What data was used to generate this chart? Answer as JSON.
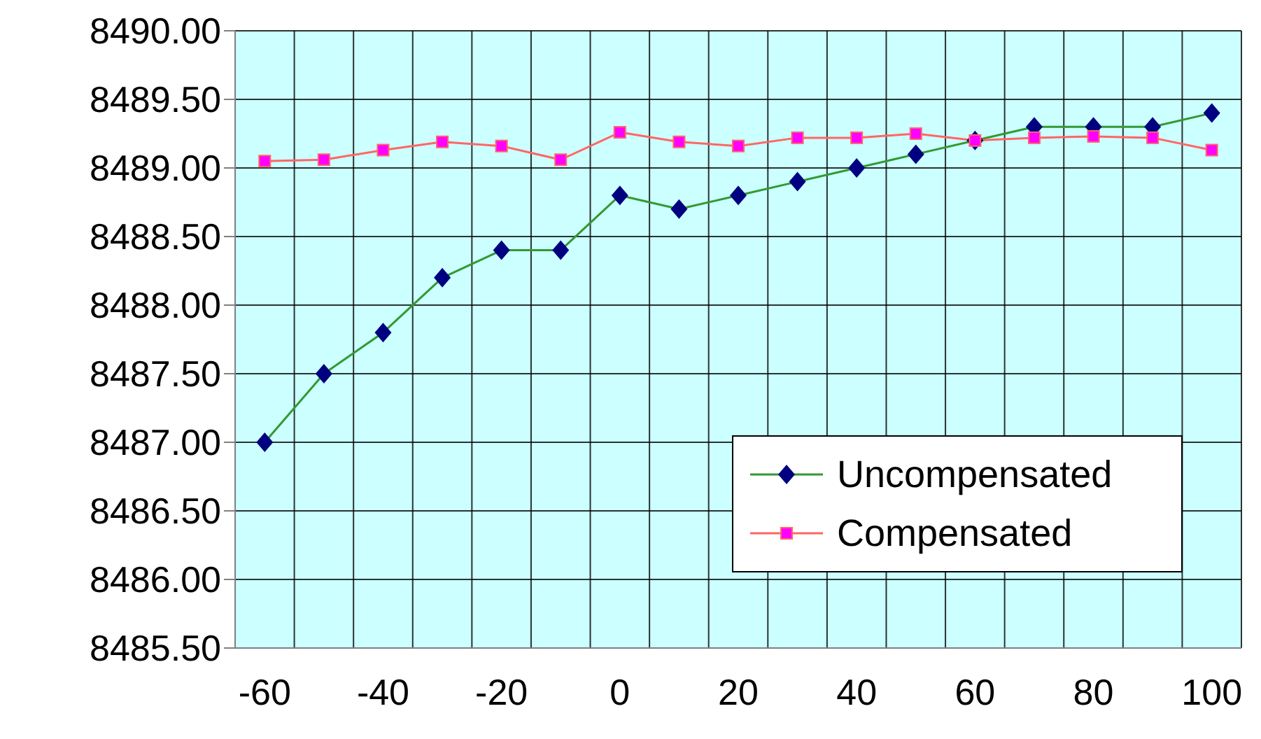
{
  "chart_data": {
    "type": "line",
    "categories": [
      "-60",
      null,
      "-40",
      null,
      "-20",
      null,
      "0",
      null,
      "20",
      null,
      "40",
      null,
      "60",
      null,
      "80",
      null,
      "100"
    ],
    "series": [
      {
        "name": "Uncompensated",
        "color": "#339933",
        "marker": "diamond",
        "values": [
          8487.0,
          8487.5,
          8487.8,
          8488.2,
          8488.4,
          8488.4,
          8488.8,
          8488.7,
          8488.8,
          8488.9,
          8489.0,
          8489.1,
          8489.2,
          8489.3,
          8489.3,
          8489.3,
          8489.4
        ]
      },
      {
        "name": "Compensated",
        "color": "#ff6666",
        "marker": "square",
        "values": [
          8489.05,
          8489.06,
          8489.13,
          8489.19,
          8489.16,
          8489.06,
          8489.26,
          8489.19,
          8489.16,
          8489.22,
          8489.22,
          8489.25,
          8489.2,
          8489.22,
          8489.23,
          8489.22,
          8489.13
        ]
      }
    ],
    "ylim": [
      8485.5,
      8490
    ],
    "yticks": [
      {
        "value": 8485.5,
        "label": "8485.50"
      },
      {
        "value": 8486,
        "label": "8486.00"
      },
      {
        "value": 8486.5,
        "label": "8486.50"
      },
      {
        "value": 8487,
        "label": "8487.00"
      },
      {
        "value": 8487.5,
        "label": "8487.50"
      },
      {
        "value": 8488,
        "label": "8488.00"
      },
      {
        "value": 8488.5,
        "label": "8488.50"
      },
      {
        "value": 8489,
        "label": "8489.00"
      },
      {
        "value": 8489.5,
        "label": "8489.50"
      },
      {
        "value": 8490,
        "label": "8490.00"
      }
    ],
    "grid": true,
    "legend": "bottom right"
  }
}
